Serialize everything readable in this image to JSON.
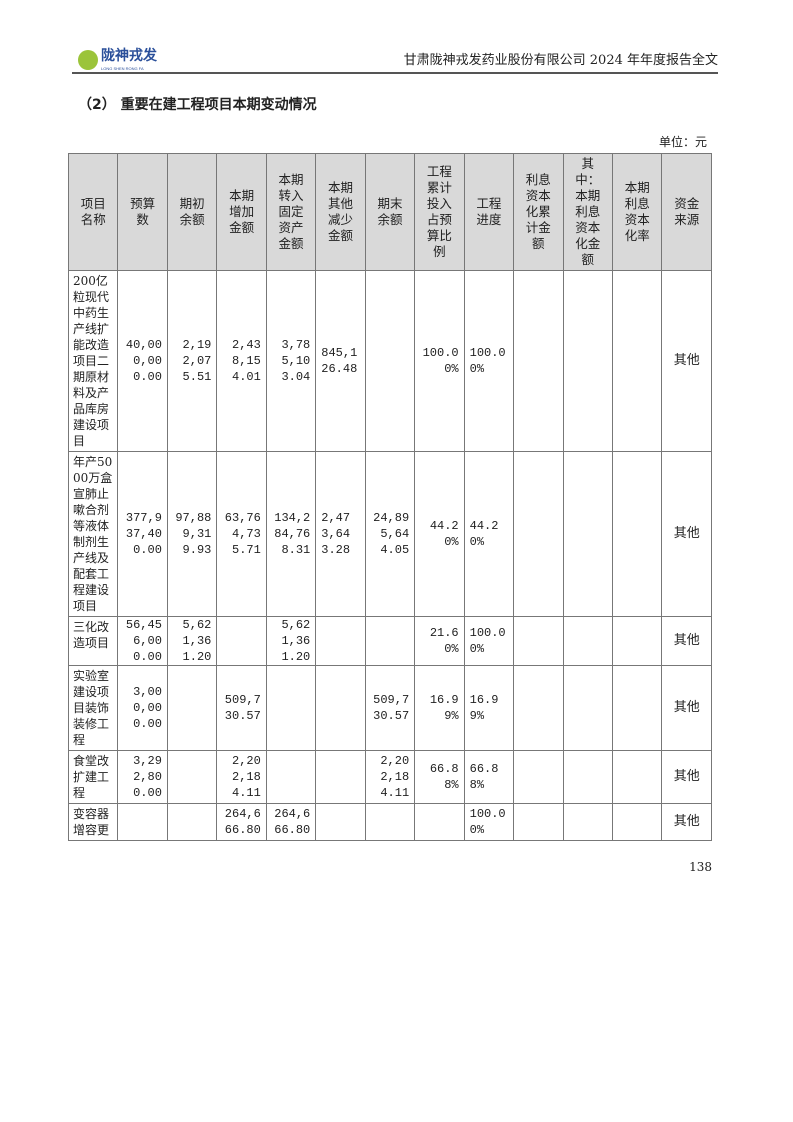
{
  "header": {
    "logo_cn": "陇神戎发",
    "logo_en": "LONG SHEN RONG FA",
    "title": "甘肃陇神戎发药业股份有限公司 2024 年年度报告全文"
  },
  "section_title": "（2） 重要在建工程项目本期变动情况",
  "unit": "单位：元",
  "table": {
    "columns": [
      "项目名称",
      "预算数",
      "期初余额",
      "本期增加金额",
      "本期转入固定资产金额",
      "本期其他减少金额",
      "期末余额",
      "工程累计投入占预算比例",
      "工程进度",
      "利息资本化累计金额",
      "其中：本期利息资本化金额",
      "本期利息资本化率",
      "资金来源"
    ],
    "rows": [
      [
        "200亿粒现代中药生产线扩能改造项目二期原材料及产品库房建设项目",
        "40,000,000.00",
        "2,192,075.51",
        "2,438,154.01",
        "3,785,103.04",
        "845,126.48",
        "",
        "100.00%",
        "100.00%",
        "",
        "",
        "",
        "其他"
      ],
      [
        "年产5000万盒宣肺止嗽合剂等液体制剂生产线及配套工程建设项目",
        "377,937,400.00",
        "97,889,319.93",
        "63,764,735.71",
        "134,284,768.31",
        "2,473,643.28",
        "24,895,644.05",
        "44.20%",
        "44.20%",
        "",
        "",
        "",
        "其他"
      ],
      [
        "三化改造项目",
        "56,456,000.00",
        "5,621,361.20",
        "",
        "5,621,361.20",
        "",
        "",
        "21.60%",
        "100.00%",
        "",
        "",
        "",
        "其他"
      ],
      [
        "实验室建设项目装饰装修工程",
        "3,000,000.00",
        "",
        "509,730.57",
        "",
        "",
        "509,730.57",
        "16.99%",
        "16.99%",
        "",
        "",
        "",
        "其他"
      ],
      [
        "食堂改扩建工程",
        "3,292,800.00",
        "",
        "2,202,184.11",
        "",
        "",
        "2,202,184.11",
        "66.88%",
        "66.88%",
        "",
        "",
        "",
        "其他"
      ],
      [
        "变容器增容更",
        "",
        "",
        "264,666.80",
        "264,666.80",
        "",
        "",
        "",
        "100.00%",
        "",
        "",
        "",
        "其他"
      ]
    ]
  },
  "page_number": "138"
}
